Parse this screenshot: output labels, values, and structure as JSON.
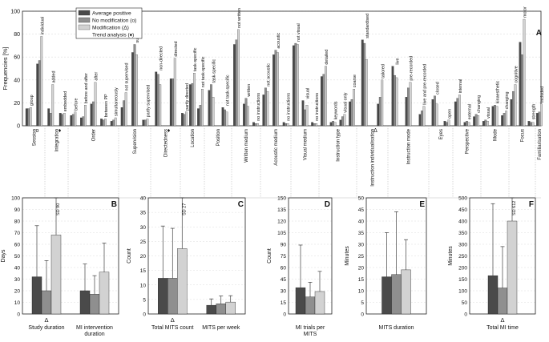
{
  "colors": {
    "avg": "#4a4a4a",
    "nomod": "#8f8f8f",
    "mod": "#d2d2d2",
    "grid": "#dddddd",
    "axis": "#222222"
  },
  "chart_data": [
    {
      "panel": "A",
      "type": "bar",
      "ylabel": "Frequencies [%]",
      "ylim": [
        0,
        100
      ],
      "yticks": [
        0,
        20,
        40,
        60,
        80,
        100
      ],
      "legend": {
        "placement": "top-left",
        "entries": [
          "Average positive",
          "No modification (o)",
          "Modification (Δ)",
          "Trend analysis (♦)"
        ]
      },
      "groups": [
        {
          "name": "Session",
          "mark": "o",
          "cats": [
            {
              "label": "group",
              "v": [
                15,
                15,
                16
              ]
            },
            {
              "label": "individual",
              "v": [
                54,
                57,
                78
              ]
            }
          ]
        },
        {
          "name": "Integration",
          "mark": "♦",
          "cats": [
            {
              "label": "added",
              "v": [
                15,
                11,
                36
              ]
            },
            {
              "label": "embedded",
              "v": [
                11,
                10,
                11
              ]
            }
          ]
        },
        {
          "name": "Order",
          "mark": "",
          "cats": [
            {
              "label": "before",
              "v": [
                9,
                10,
                12
              ]
            },
            {
              "label": "before and after",
              "v": [
                7,
                8,
                18
              ]
            },
            {
              "label": "after",
              "v": [
                19,
                21,
                38
              ]
            },
            {
              "label": "between PP",
              "v": [
                6,
                5,
                6
              ]
            },
            {
              "label": "simultaneously",
              "v": [
                4,
                5,
                7
              ]
            }
          ]
        },
        {
          "name": "Supervision",
          "mark": "",
          "cats": [
            {
              "label": "not supervised",
              "v": [
                16,
                22,
                29
              ]
            },
            {
              "label": "supervised",
              "v": [
                64,
                71,
                62
              ]
            },
            {
              "label": "partly supervised",
              "v": [
                5,
                5,
                6
              ]
            }
          ]
        },
        {
          "name": "Directedness",
          "mark": "♦",
          "cats": [
            {
              "label": "non-directed",
              "v": [
                47,
                45,
                36
              ]
            },
            {
              "label": "directed",
              "v": [
                41,
                41,
                59
              ]
            }
          ]
        },
        {
          "name": "Location",
          "mark": "",
          "cats": [
            {
              "label": "partly directed",
              "v": [
                11,
                10,
                12
              ]
            },
            {
              "label": "task-specific",
              "v": [
                36,
                37,
                46
              ]
            },
            {
              "label": "not task-specific",
              "v": [
                15,
                18,
                32
              ]
            }
          ]
        },
        {
          "name": "Position",
          "mark": "",
          "cats": [
            {
              "label": "task-specific",
              "v": [
                31,
                36,
                25
              ]
            },
            {
              "label": "not task-specific",
              "v": [
                16,
                14,
                12
              ]
            }
          ]
        },
        {
          "name": "Written medium",
          "mark": "",
          "cats": [
            {
              "label": "not written",
              "v": [
                71,
                75,
                84
              ]
            },
            {
              "label": "written",
              "v": [
                19,
                24,
                17
              ]
            },
            {
              "label": "no instructions",
              "v": [
                3,
                2,
                2
              ]
            }
          ]
        },
        {
          "name": "Acoustic medium",
          "mark": "",
          "cats": [
            {
              "label": "not acoustic",
              "v": [
                27,
                33,
                30
              ]
            },
            {
              "label": "acoustic",
              "v": [
                62,
                66,
                64
              ]
            },
            {
              "label": "no instructions",
              "v": [
                3,
                2,
                2
              ]
            }
          ]
        },
        {
          "name": "Visual medium",
          "mark": "",
          "cats": [
            {
              "label": "not visual",
              "v": [
                70,
                72,
                71
              ]
            },
            {
              "label": "visual",
              "v": [
                22,
                14,
                18
              ]
            },
            {
              "label": "no instructions",
              "v": [
                3,
                2,
                2
              ]
            }
          ]
        },
        {
          "name": "Instruction type",
          "mark": "",
          "cats": [
            {
              "label": "detailed",
              "v": [
                43,
                45,
                52
              ]
            },
            {
              "label": "keywords",
              "v": [
                3,
                4,
                3
              ]
            },
            {
              "label": "visual only",
              "v": [
                5,
                8,
                10
              ]
            },
            {
              "label": "coarse",
              "v": [
                21,
                23,
                32
              ]
            }
          ]
        },
        {
          "name": "Instruction individualisation",
          "mark": "Δ",
          "cats": [
            {
              "label": "standardised",
              "v": [
                75,
                72,
                58
              ]
            },
            {
              "label": "tailored",
              "v": [
                19,
                25,
                40
              ]
            }
          ]
        },
        {
          "name": "Instruction mode",
          "mark": "",
          "cats": [
            {
              "label": "live",
              "v": [
                52,
                44,
                42
              ]
            },
            {
              "label": "pre-recorded",
              "v": [
                25,
                33,
                38
              ]
            },
            {
              "label": "live and pre-recorded",
              "v": [
                10,
                13,
                17
              ]
            }
          ]
        },
        {
          "name": "Eyes",
          "mark": "",
          "cats": [
            {
              "label": "closed",
              "v": [
                23,
                26,
                19
              ]
            },
            {
              "label": "open",
              "v": [
                4,
                3,
                5
              ]
            }
          ]
        },
        {
          "name": "Perspective",
          "mark": "",
          "cats": [
            {
              "label": "internal",
              "v": [
                21,
                24,
                27
              ]
            },
            {
              "label": "external",
              "v": [
                3,
                4,
                3
              ]
            },
            {
              "label": "changing",
              "v": [
                8,
                10,
                9
              ]
            }
          ]
        },
        {
          "name": "Mode",
          "mark": "",
          "cats": [
            {
              "label": "visual",
              "v": [
                4,
                5,
                4
              ]
            },
            {
              "label": "kinaesthetic",
              "v": [
                17,
                18,
                17
              ]
            },
            {
              "label": "changing",
              "v": [
                9,
                11,
                13
              ]
            }
          ]
        },
        {
          "name": "Focus",
          "mark": "",
          "cats": [
            {
              "label": "cognitive",
              "v": [
                23,
                30,
                36
              ]
            },
            {
              "label": "motor",
              "v": [
                73,
                62,
                93
              ]
            },
            {
              "label": "strength",
              "v": [
                4,
                3,
                3
              ]
            }
          ]
        },
        {
          "name": "Familiarisation",
          "mark": "",
          "cats": [
            {
              "label": "included",
              "v": [
                11,
                12,
                19
              ]
            }
          ]
        }
      ]
    },
    {
      "panel": "B",
      "type": "bar",
      "ylabel": "Days",
      "ylim": [
        0,
        100
      ],
      "yticks": [
        0,
        10,
        20,
        30,
        40,
        50,
        60,
        70,
        80,
        90,
        100
      ],
      "categories": [
        {
          "label": "Study duration",
          "mark": "Δ",
          "v": [
            32,
            20,
            68
          ],
          "err": [
            76,
            46,
            100
          ],
          "sd_note": "SD 90"
        },
        {
          "label": "MI intervention duration",
          "mark": "",
          "v": [
            20,
            17,
            36
          ],
          "err": [
            43,
            33,
            61
          ],
          "sd_note": ""
        }
      ]
    },
    {
      "panel": "C",
      "type": "bar",
      "ylabel": "Count",
      "ylim": [
        0,
        40
      ],
      "yticks": [
        0,
        5,
        10,
        15,
        20,
        25,
        30,
        35,
        40
      ],
      "categories": [
        {
          "label": "Total MITS count",
          "mark": "Δ",
          "v": [
            12.3,
            12.3,
            22.5
          ],
          "err": [
            30.3,
            29.5,
            40
          ],
          "sd_note": "SD 27"
        },
        {
          "label": "MITS per week",
          "mark": "",
          "v": [
            3,
            3.5,
            4.1
          ],
          "err": [
            5.2,
            6.2,
            6.3
          ],
          "sd_note": ""
        }
      ]
    },
    {
      "panel": "D",
      "type": "bar",
      "ylabel": "Count",
      "ylim": [
        0,
        150
      ],
      "yticks": [
        0,
        15,
        30,
        45,
        60,
        75,
        90,
        105,
        120,
        135,
        150
      ],
      "categories": [
        {
          "label": "MI trials per MITS",
          "mark": "",
          "v": [
            34,
            22,
            29
          ],
          "err": [
            89,
            41,
            55
          ],
          "sd_note": ""
        }
      ]
    },
    {
      "panel": "E",
      "type": "bar",
      "ylabel": "Minutes",
      "ylim": [
        0,
        50
      ],
      "yticks": [
        0,
        5,
        10,
        15,
        20,
        25,
        30,
        35,
        40,
        45,
        50
      ],
      "categories": [
        {
          "label": "MITS duration",
          "mark": "",
          "v": [
            16,
            17,
            19
          ],
          "err": [
            35,
            44,
            32
          ],
          "sd_note": ""
        }
      ]
    },
    {
      "panel": "F",
      "type": "bar",
      "ylabel": "Minutes",
      "ylim": [
        0,
        500
      ],
      "yticks": [
        0,
        50,
        100,
        150,
        200,
        250,
        300,
        350,
        400,
        450,
        500
      ],
      "categories": [
        {
          "label": "Total MI time",
          "mark": "Δ",
          "v": [
            165,
            112,
            400
          ],
          "err": [
            475,
            290,
            500
          ],
          "sd_note": "SD 612"
        }
      ]
    }
  ]
}
